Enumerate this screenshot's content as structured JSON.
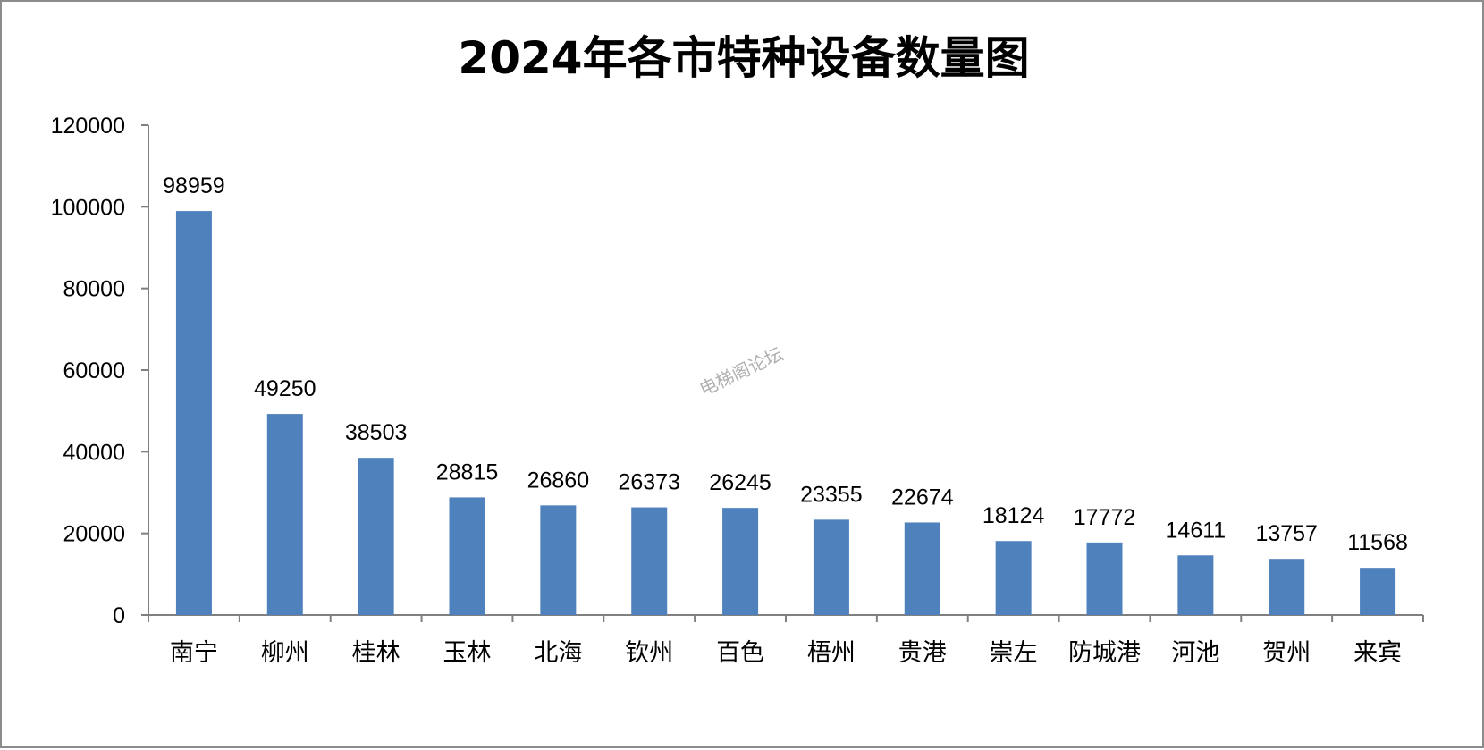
{
  "chart_data": {
    "type": "bar",
    "title": "2024年各市特种设备数量图",
    "xlabel": "",
    "ylabel": "",
    "categories": [
      "南宁",
      "柳州",
      "桂林",
      "玉林",
      "北海",
      "钦州",
      "百色",
      "梧州",
      "贵港",
      "崇左",
      "防城港",
      "河池",
      "贺州",
      "来宾"
    ],
    "values": [
      98959,
      49250,
      38503,
      28815,
      26860,
      26373,
      26245,
      23355,
      22674,
      18124,
      17772,
      14611,
      13757,
      11568
    ],
    "ylim": [
      0,
      120000
    ],
    "yticks": [
      0,
      20000,
      40000,
      60000,
      80000,
      100000,
      120000
    ],
    "grid": false,
    "legend": "none",
    "data_labels": true,
    "bar_color": "#4f81bd",
    "axis_color": "#808080"
  },
  "watermark": "电梯阁论坛"
}
